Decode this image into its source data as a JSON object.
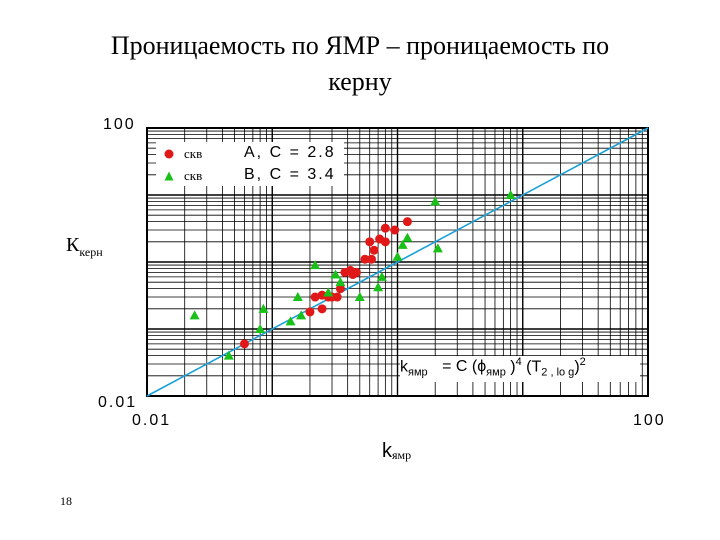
{
  "slide": {
    "title": "Проницаемость по ЯМР – проницаемость по керну",
    "page_number": "18"
  },
  "chart_data": {
    "type": "scatter",
    "title": "Проницаемость по ЯМР – проницаемость по керну",
    "xlabel": "k",
    "xlabel_sub": "ямр",
    "ylabel": "К",
    "ylabel_sub": "керн",
    "x_scale": "log",
    "y_scale": "log",
    "xlim": [
      0.01,
      100
    ],
    "ylim": [
      0.01,
      100
    ],
    "x_ticks": [
      "0.01",
      "100"
    ],
    "y_ticks": [
      "0.01",
      "100"
    ],
    "grid": true,
    "legend_position": "top-left",
    "formula": {
      "lhs": "k",
      "lhs_sub": "ямр",
      "eq": "= C (ϕ",
      "phi_sub": "ямр",
      "pow1": "4",
      "mid": "(T",
      "t_sub": "2 , lo g",
      "pow2": "2"
    },
    "fit_line": {
      "x": [
        0.01,
        100
      ],
      "y": [
        0.01,
        100
      ],
      "color": "#1aa0d8"
    },
    "series": [
      {
        "legend_label": "скв",
        "legend_value": "A, C = 2.8",
        "marker": "circle",
        "color": "#e01818",
        "points": [
          [
            0.06,
            0.06
          ],
          [
            0.2,
            0.18
          ],
          [
            0.25,
            0.2
          ],
          [
            0.3,
            0.3
          ],
          [
            0.35,
            0.4
          ],
          [
            0.33,
            0.3
          ],
          [
            0.28,
            0.3
          ],
          [
            0.42,
            0.75
          ],
          [
            0.44,
            0.65
          ],
          [
            0.47,
            0.7
          ],
          [
            0.55,
            1.1
          ],
          [
            0.62,
            1.1
          ],
          [
            0.65,
            1.5
          ],
          [
            0.72,
            2.2
          ],
          [
            0.8,
            3.2
          ],
          [
            0.8,
            2.0
          ],
          [
            0.95,
            3.0
          ],
          [
            1.2,
            4.0
          ],
          [
            0.38,
            0.7
          ],
          [
            0.6,
            2.0
          ],
          [
            0.25,
            0.32
          ],
          [
            0.22,
            0.3
          ]
        ]
      },
      {
        "legend_label": "скв",
        "legend_value": "B, C = 3.4",
        "marker": "triangle",
        "color": "#18c018",
        "points": [
          [
            0.024,
            0.16
          ],
          [
            0.045,
            0.04
          ],
          [
            0.08,
            0.1
          ],
          [
            0.085,
            0.2
          ],
          [
            0.14,
            0.13
          ],
          [
            0.17,
            0.16
          ],
          [
            0.16,
            0.3
          ],
          [
            0.28,
            0.35
          ],
          [
            0.35,
            0.5
          ],
          [
            0.32,
            0.65
          ],
          [
            0.22,
            0.9
          ],
          [
            0.5,
            0.3
          ],
          [
            0.7,
            0.42
          ],
          [
            0.75,
            0.6
          ],
          [
            1.0,
            1.2
          ],
          [
            1.1,
            1.8
          ],
          [
            1.2,
            2.3
          ],
          [
            2.1,
            1.6
          ],
          [
            2.0,
            8.0
          ],
          [
            8.0,
            10.0
          ]
        ]
      }
    ]
  }
}
